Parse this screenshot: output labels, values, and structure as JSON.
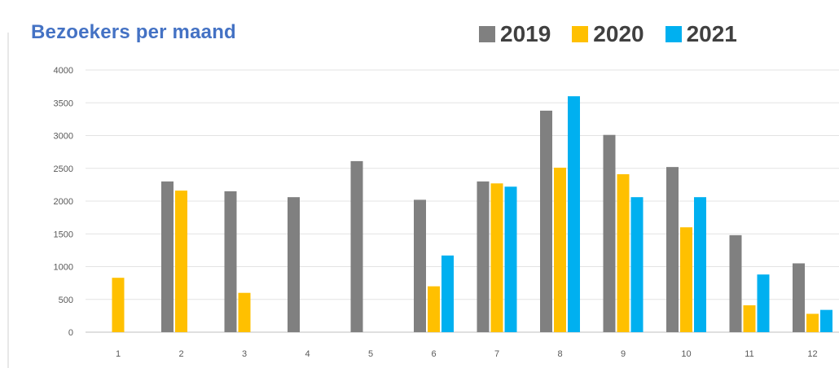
{
  "chart_data": {
    "type": "bar",
    "title": "Bezoekers per maand",
    "xlabel": "",
    "ylabel": "",
    "categories": [
      "1",
      "2",
      "3",
      "4",
      "5",
      "6",
      "7",
      "8",
      "9",
      "10",
      "11",
      "12"
    ],
    "ylim": [
      0,
      4000
    ],
    "yticks": [
      "0",
      "500",
      "1000",
      "1500",
      "2000",
      "2500",
      "3000",
      "3500",
      "4000"
    ],
    "grid": true,
    "legend_position": "top-right",
    "series": [
      {
        "name": "2019",
        "color": "#808080",
        "values": [
          0,
          2300,
          2150,
          2060,
          2610,
          2020,
          2300,
          3380,
          3010,
          2520,
          1480,
          1050
        ]
      },
      {
        "name": "2020",
        "color": "#ffc000",
        "values": [
          830,
          2160,
          600,
          0,
          0,
          700,
          2270,
          2510,
          2410,
          1600,
          410,
          280
        ]
      },
      {
        "name": "2021",
        "color": "#00b0f0",
        "values": [
          0,
          0,
          0,
          0,
          0,
          1170,
          2220,
          3600,
          2060,
          2060,
          880,
          340
        ]
      }
    ]
  }
}
